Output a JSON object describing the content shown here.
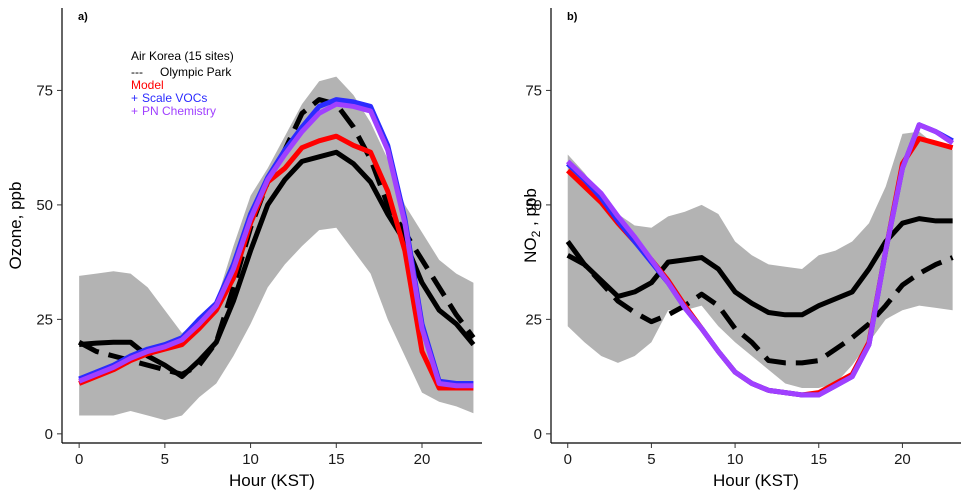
{
  "colors": {
    "band": "#b3b3b3",
    "observed": "#000000",
    "model": "#ff0000",
    "scale_vocs": "#2b2bff",
    "pn_chemistry": "#a040ff"
  },
  "legend": {
    "title": "Air Korea (15 sites)",
    "items": [
      {
        "label": "Olympic Park",
        "marker": "---",
        "color": "#000000"
      },
      {
        "label": "Model",
        "marker": "",
        "color": "#ff0000"
      },
      {
        "label": "Scale VOCs",
        "marker": "+",
        "color": "#2b2bff"
      },
      {
        "label": "PN Chemistry",
        "marker": "+",
        "color": "#a040ff"
      }
    ]
  },
  "chart_data": [
    {
      "type": "line",
      "panel_label": "a)",
      "xlabel": "Hour (KST)",
      "ylabel": "Ozone, ppb",
      "xlim": [
        -1,
        23.5
      ],
      "ylim": [
        -2,
        93
      ],
      "xticks": [
        0,
        5,
        10,
        15,
        20
      ],
      "yticks": [
        0,
        25,
        50,
        75
      ],
      "x": [
        0,
        1,
        2,
        3,
        4,
        5,
        6,
        7,
        8,
        9,
        10,
        11,
        12,
        13,
        14,
        15,
        16,
        17,
        18,
        19,
        20,
        21,
        22,
        23
      ],
      "band": {
        "lower": [
          4,
          4,
          4,
          5,
          4,
          3,
          4,
          8,
          11,
          17,
          24,
          32,
          37,
          41,
          44.5,
          45,
          40,
          35,
          25,
          17,
          9,
          7,
          6,
          4.5
        ],
        "upper": [
          34.5,
          35,
          35.5,
          35,
          32,
          27,
          22,
          25,
          29,
          41,
          52,
          58,
          65,
          72,
          77,
          78,
          74,
          68,
          60,
          50,
          44,
          38,
          35,
          33
        ]
      },
      "series": [
        {
          "name": "Air Korea (15 sites)",
          "style": "solid",
          "values": [
            19.5,
            19.8,
            20,
            20,
            17,
            15,
            12.5,
            16,
            20,
            29,
            40,
            50,
            55.5,
            59.5,
            60.5,
            61.5,
            59,
            55,
            48,
            42,
            33,
            27,
            24,
            19.5
          ]
        },
        {
          "name": "Olympic Park",
          "style": "dashed",
          "values": [
            20,
            18,
            17,
            16,
            15,
            14,
            13,
            15,
            20,
            32,
            45,
            55,
            62,
            70,
            73,
            72,
            67,
            60,
            50,
            44,
            38,
            32,
            26,
            21
          ]
        },
        {
          "name": "Model",
          "values": [
            11,
            12.5,
            14,
            16,
            17.5,
            18.5,
            19.5,
            23,
            27,
            34,
            46,
            55,
            58,
            62.5,
            64,
            65,
            63,
            61.5,
            53,
            40,
            18,
            10,
            10,
            10
          ]
        },
        {
          "name": "Scale VOCs",
          "values": [
            12,
            13.5,
            15,
            17,
            18.5,
            19.5,
            21,
            25,
            28.5,
            37,
            48,
            56,
            62,
            67,
            71.5,
            73,
            72.5,
            71.5,
            63,
            47,
            24,
            11.5,
            11,
            11
          ]
        },
        {
          "name": "PN Chemistry",
          "values": [
            11.5,
            13,
            14.5,
            16.5,
            18,
            19,
            20.5,
            24,
            28,
            36,
            47,
            55.5,
            61,
            66,
            70,
            72,
            71.5,
            70.5,
            62,
            46,
            23,
            11,
            10.5,
            10.5
          ]
        }
      ]
    },
    {
      "type": "line",
      "panel_label": "b)",
      "xlabel": "Hour (KST)",
      "ylabel": "NO₂ , ppb",
      "ylabel_main": "NO",
      "ylabel_sub": "2",
      "ylabel_rest": " , ppb",
      "xlim": [
        -1,
        23.5
      ],
      "ylim": [
        -2,
        93
      ],
      "xticks": [
        0,
        5,
        10,
        15,
        20
      ],
      "yticks": [
        0,
        25,
        50,
        75
      ],
      "x": [
        0,
        1,
        2,
        3,
        4,
        5,
        6,
        7,
        8,
        9,
        10,
        11,
        12,
        13,
        14,
        15,
        16,
        17,
        18,
        19,
        20,
        21,
        22,
        23
      ],
      "band": {
        "lower": [
          23.5,
          20,
          17,
          15.5,
          17,
          20,
          27,
          27,
          28,
          23.5,
          20,
          17,
          14,
          11,
          10,
          10,
          11,
          15,
          20,
          25,
          27,
          28,
          27.5,
          27
        ],
        "upper": [
          61,
          57,
          52,
          48,
          45.5,
          45,
          47.5,
          48.5,
          50,
          48,
          42,
          39,
          37,
          36.5,
          36,
          39,
          40,
          42,
          46,
          54,
          65.5,
          66,
          63,
          62
        ]
      },
      "series": [
        {
          "name": "Air Korea (15 sites)",
          "style": "solid",
          "values": [
            42,
            37,
            33.5,
            30,
            31,
            33,
            37.5,
            38,
            38.5,
            36,
            31,
            28.5,
            26.5,
            26,
            26,
            28,
            29.5,
            31,
            36,
            42,
            46,
            47,
            46.5,
            46.5
          ]
        },
        {
          "name": "Olympic Park",
          "style": "dashed",
          "values": [
            39,
            37,
            33,
            29,
            26.5,
            24.5,
            26,
            28,
            30.5,
            28,
            23,
            20,
            16,
            15.5,
            15.5,
            16,
            18.5,
            21,
            24,
            28,
            32.5,
            35,
            37,
            38.5
          ]
        },
        {
          "name": "Model",
          "values": [
            57.5,
            54,
            50.5,
            46,
            42,
            38,
            33.5,
            28,
            23,
            18,
            13.5,
            11,
            9.5,
            9,
            8.5,
            9,
            11,
            13,
            20,
            40,
            59,
            64.5,
            63.5,
            62.5
          ]
        },
        {
          "name": "Scale VOCs",
          "values": [
            59,
            55.5,
            51.5,
            46.5,
            42,
            37.5,
            33,
            27.5,
            23,
            18,
            13.5,
            11,
            9.5,
            9,
            8.5,
            8.5,
            10.5,
            12.5,
            19.5,
            40,
            58,
            67.5,
            66,
            64
          ]
        },
        {
          "name": "PN Chemistry",
          "values": [
            59.5,
            56,
            52.5,
            47.5,
            43,
            38,
            33,
            27.5,
            23,
            18,
            13.5,
            11,
            9.5,
            9,
            8.5,
            8.5,
            10.5,
            12.5,
            19.5,
            40,
            58,
            67.5,
            66,
            63.5
          ]
        }
      ]
    }
  ]
}
